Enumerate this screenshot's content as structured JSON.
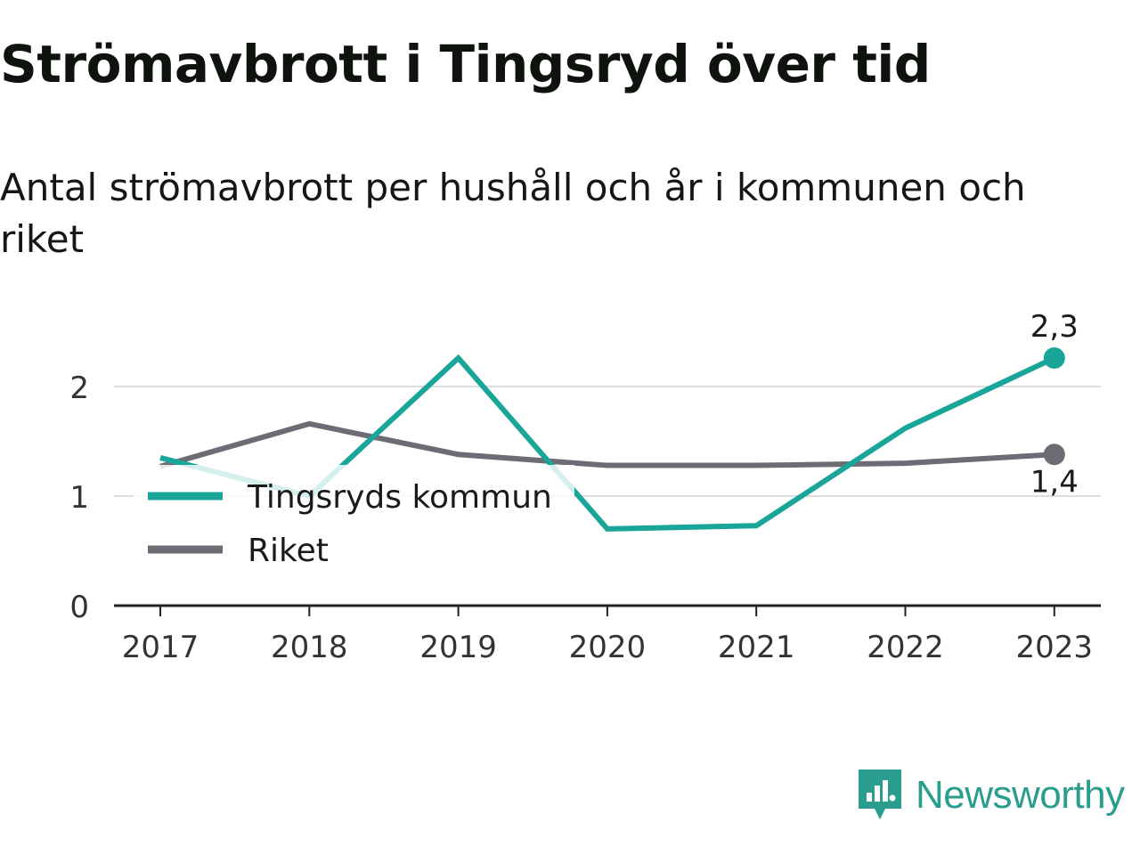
{
  "header": {
    "title": "Strömavbrott i Tingsryd över tid",
    "subtitle": "Antal strömavbrott per hushåll och år i kommunen och riket"
  },
  "brand": {
    "name": "Newsworthy",
    "icon": "newsworthy-logo-icon",
    "color": "#2a9d8f"
  },
  "chart_data": {
    "type": "line",
    "title": "Strömavbrott i Tingsryd över tid",
    "subtitle": "Antal strömavbrott per hushåll och år i kommunen och riket",
    "xlabel": "",
    "ylabel": "",
    "categories": [
      "2017",
      "2018",
      "2019",
      "2020",
      "2021",
      "2022",
      "2023"
    ],
    "ylim": [
      0,
      2.5
    ],
    "yticks": [
      0,
      1,
      2
    ],
    "grid": true,
    "legend_position": "bottom-left",
    "series": [
      {
        "name": "Tingsryds kommun",
        "color": "#1aa599",
        "values": [
          1.35,
          1.0,
          2.26,
          0.7,
          0.73,
          1.62,
          2.26
        ],
        "end_label": "2,3"
      },
      {
        "name": "Riket",
        "color": "#6d6b73",
        "values": [
          1.27,
          1.66,
          1.38,
          1.28,
          1.28,
          1.3,
          1.38
        ],
        "end_label": "1,4"
      }
    ]
  }
}
